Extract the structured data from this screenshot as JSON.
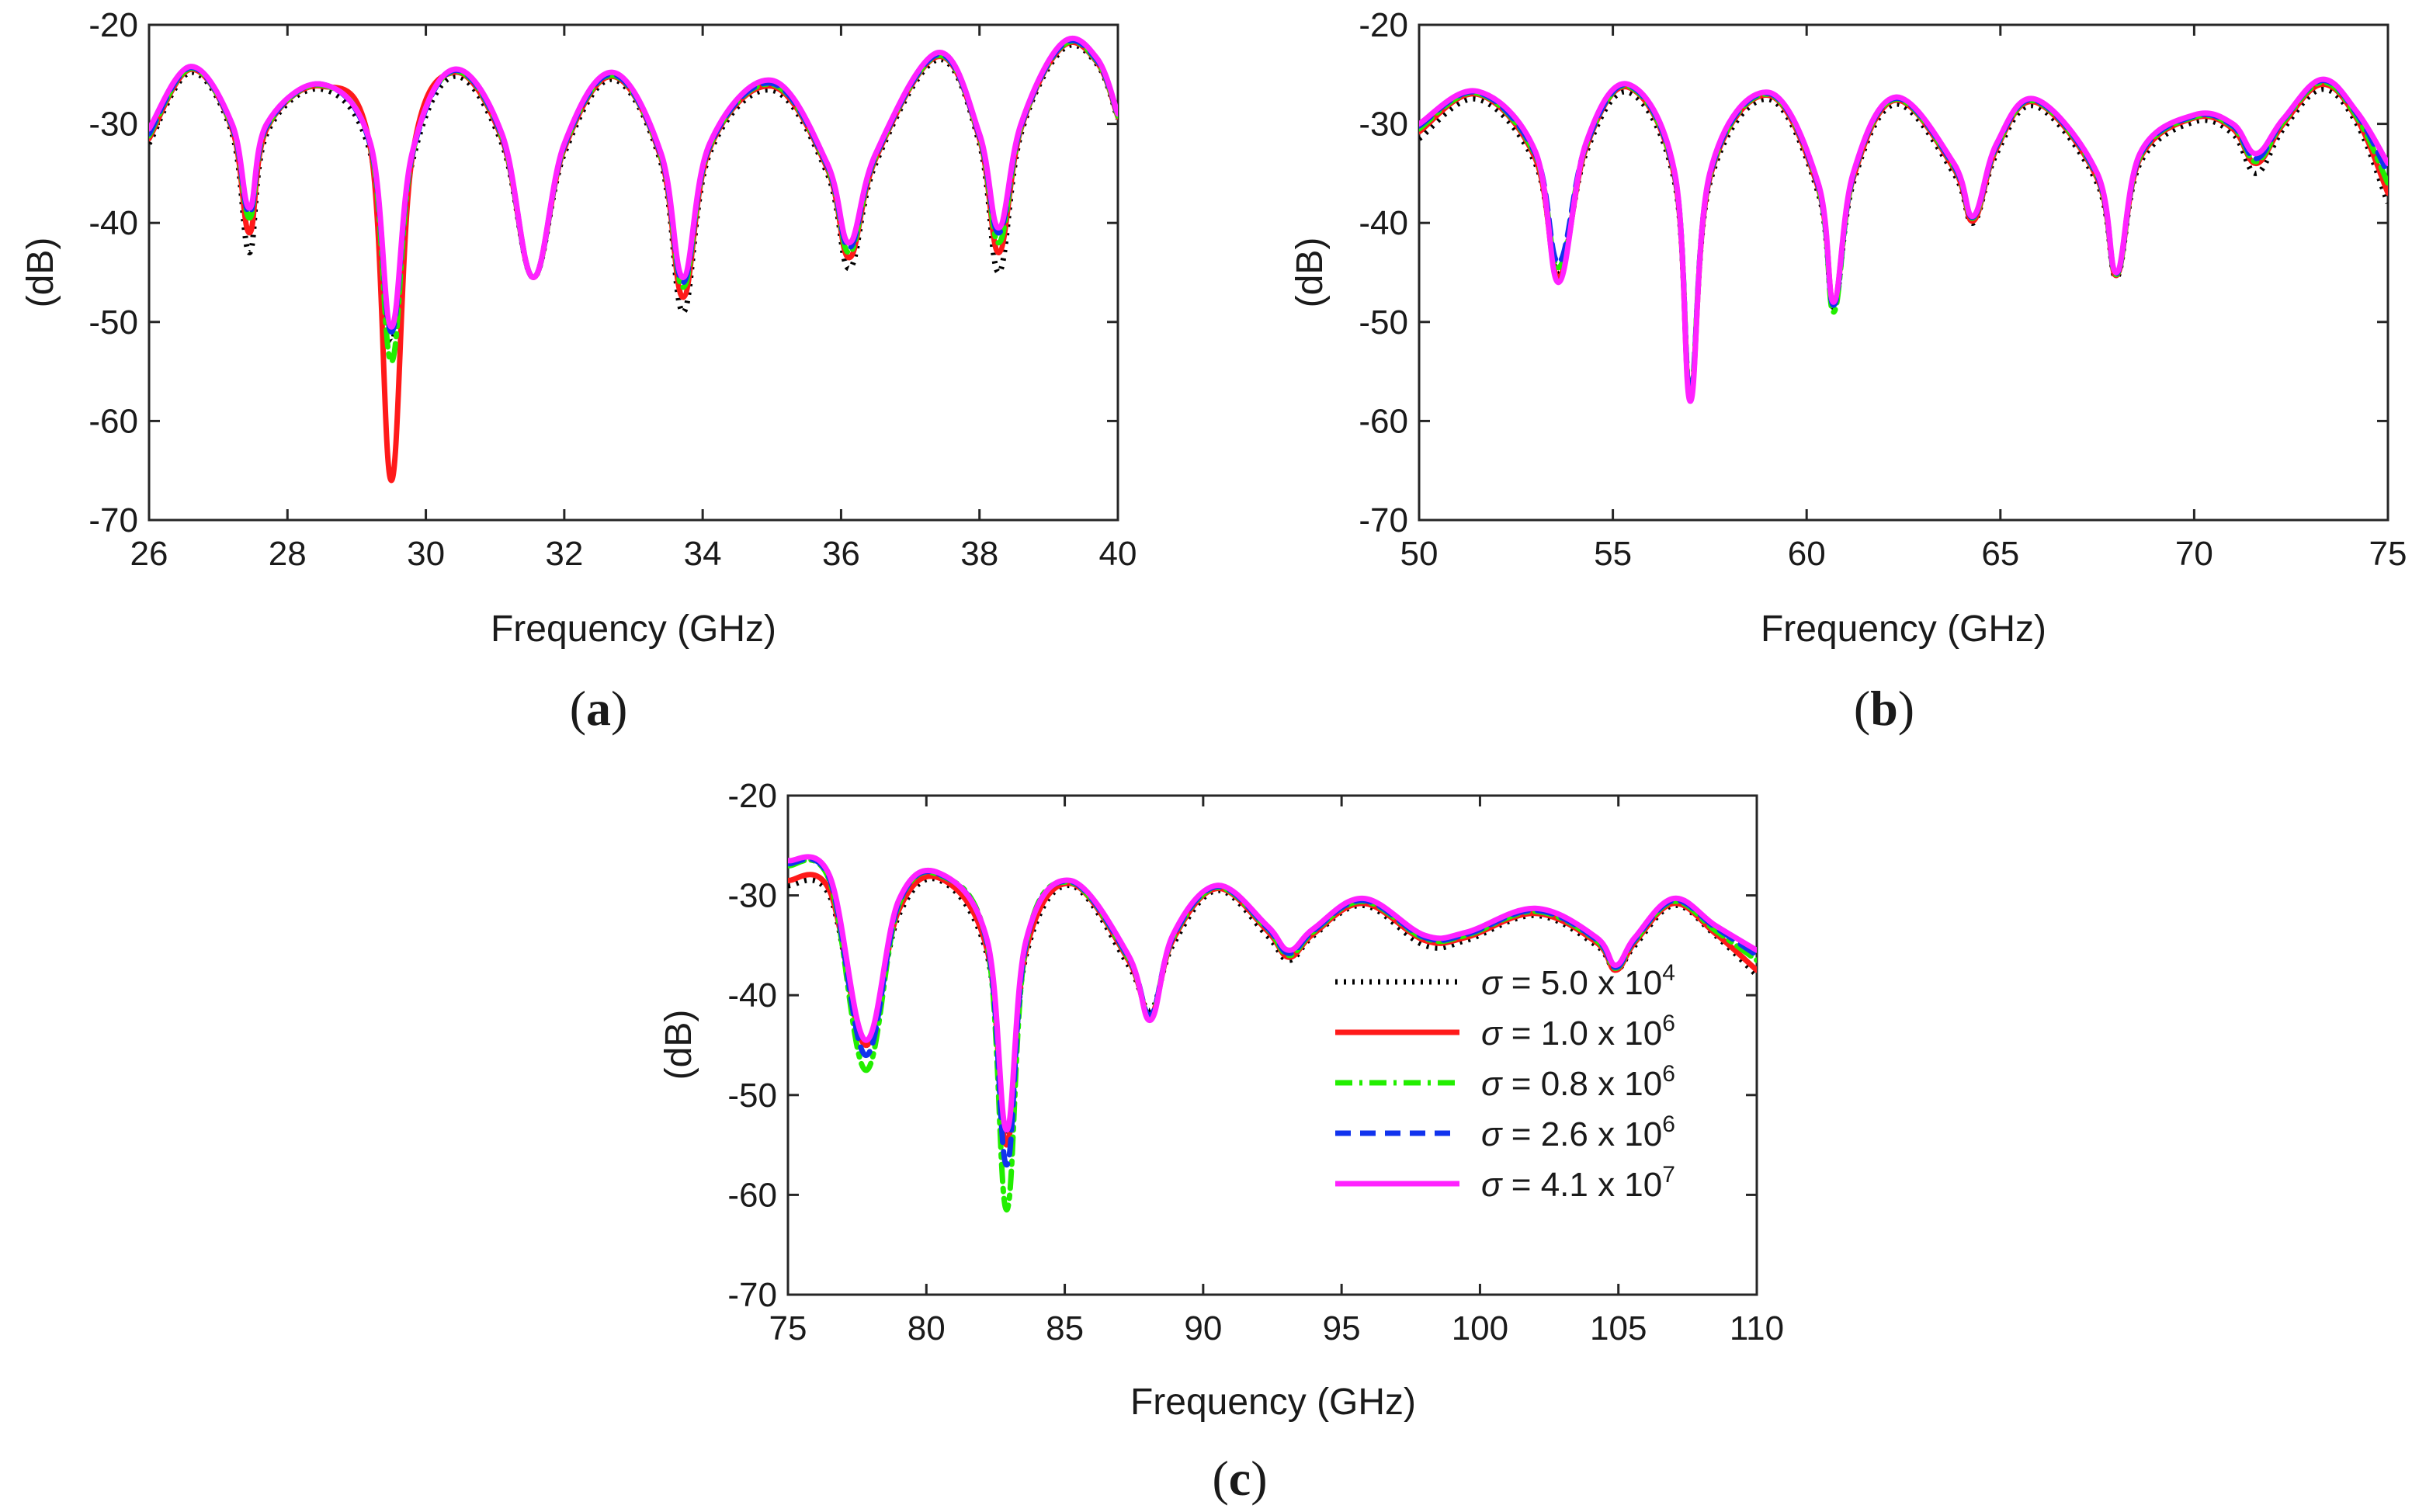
{
  "chart_data": [
    {
      "panel": "a",
      "panel_label": "a",
      "type": "line",
      "xlabel": "Frequency (GHz)",
      "ylabel": "(dB)",
      "xlim": [
        26,
        40
      ],
      "ylim": [
        -70,
        -20
      ],
      "xticks": [
        "26",
        "28",
        "30",
        "32",
        "34",
        "36",
        "38",
        "40"
      ],
      "yticks": [
        "-70",
        "-60",
        "-50",
        "-40",
        "-30",
        "-20"
      ],
      "series": [
        {
          "name": "σ = 5.0 x 10^4",
          "color": "#000000",
          "dash": "dot",
          "x": [
            26,
            26.6,
            27.2,
            27.45,
            27.7,
            28.5,
            29.2,
            29.5,
            29.8,
            30.4,
            31.1,
            31.55,
            32.0,
            32.7,
            33.4,
            33.72,
            34.1,
            35.0,
            35.8,
            36.12,
            36.5,
            37.4,
            38.0,
            38.28,
            38.6,
            39.2,
            39.7,
            40
          ],
          "y": [
            -32,
            -24.8,
            -31,
            -43,
            -31,
            -26.5,
            -33,
            -52,
            -34,
            -25.2,
            -32,
            -45.5,
            -33,
            -25.5,
            -34,
            -49,
            -33,
            -26.6,
            -35,
            -44.6,
            -34,
            -23.5,
            -32,
            -45,
            -31,
            -22.5,
            -24,
            -29.5
          ]
        },
        {
          "name": "σ = 1.0 x 10^6",
          "color": "#ff1a1a",
          "dash": "solid",
          "x": [
            26,
            26.6,
            27.2,
            27.45,
            27.7,
            28.5,
            29.2,
            29.5,
            29.8,
            30.4,
            31.1,
            31.55,
            32.0,
            32.7,
            33.4,
            33.72,
            34.1,
            35.0,
            35.8,
            36.12,
            36.5,
            37.4,
            38.0,
            38.28,
            38.6,
            39.2,
            39.7,
            40
          ],
          "y": [
            -31.5,
            -24.5,
            -30.5,
            -41,
            -30.5,
            -26.2,
            -32.5,
            -66,
            -33.5,
            -24.8,
            -31.5,
            -45.5,
            -32.5,
            -25.2,
            -33.5,
            -47.5,
            -32.5,
            -26.2,
            -34.5,
            -43.5,
            -33.5,
            -23.2,
            -31.5,
            -43,
            -30.5,
            -22.2,
            -23.8,
            -29.3
          ]
        },
        {
          "name": "σ = 0.8 x 10^6",
          "color": "#22ee00",
          "dash": "dashdot",
          "x": [
            26,
            26.6,
            27.2,
            27.45,
            27.7,
            28.5,
            29.2,
            29.5,
            29.8,
            30.4,
            31.1,
            31.55,
            32.0,
            32.7,
            33.4,
            33.72,
            34.1,
            35.0,
            35.8,
            36.12,
            36.5,
            37.4,
            38.0,
            38.28,
            38.6,
            39.2,
            39.7,
            40
          ],
          "y": [
            -31.2,
            -24.4,
            -30.3,
            -39.5,
            -30.3,
            -26.1,
            -32.3,
            -54,
            -33.3,
            -24.7,
            -31.3,
            -45.5,
            -32.3,
            -25.1,
            -33.3,
            -46.5,
            -32.3,
            -26.0,
            -34.3,
            -43,
            -33.3,
            -23.1,
            -31.3,
            -42,
            -30.3,
            -22.1,
            -23.7,
            -29.2
          ]
        },
        {
          "name": "σ = 2.6 x 10^6",
          "color": "#1133ee",
          "dash": "dash",
          "x": [
            26,
            26.6,
            27.2,
            27.45,
            27.7,
            28.5,
            29.2,
            29.5,
            29.8,
            30.4,
            31.1,
            31.55,
            32.0,
            32.7,
            33.4,
            33.72,
            34.1,
            35.0,
            35.8,
            36.12,
            36.5,
            37.4,
            38.0,
            38.28,
            38.6,
            39.2,
            39.7,
            40
          ],
          "y": [
            -31,
            -24.3,
            -30.2,
            -39,
            -30.2,
            -26.0,
            -32.2,
            -51,
            -33.2,
            -24.6,
            -31.2,
            -45.5,
            -32.2,
            -25.0,
            -33.2,
            -46,
            -32.2,
            -25.9,
            -34.2,
            -42.5,
            -33.2,
            -23.0,
            -31.2,
            -41,
            -30.2,
            -22.0,
            -23.6,
            -29.1
          ]
        },
        {
          "name": "σ = 4.1 x 10^7",
          "color": "#ff22ff",
          "dash": "solid",
          "x": [
            26,
            26.6,
            27.2,
            27.45,
            27.7,
            28.5,
            29.2,
            29.5,
            29.8,
            30.4,
            31.1,
            31.55,
            32.0,
            32.7,
            33.4,
            33.72,
            34.1,
            35.0,
            35.8,
            36.12,
            36.5,
            37.4,
            38.0,
            38.28,
            38.6,
            39.2,
            39.7,
            40
          ],
          "y": [
            -30.5,
            -24.2,
            -30,
            -38.5,
            -30,
            -26.0,
            -32,
            -50.5,
            -33,
            -24.5,
            -31,
            -45.5,
            -32,
            -24.8,
            -33,
            -45.5,
            -32,
            -25.6,
            -34,
            -42,
            -33,
            -22.8,
            -31,
            -40.5,
            -30,
            -21.8,
            -23.4,
            -29
          ]
        }
      ]
    },
    {
      "panel": "b",
      "panel_label": "b",
      "type": "line",
      "xlabel": "Frequency (GHz)",
      "ylabel": "(dB)",
      "xlim": [
        50,
        75
      ],
      "ylim": [
        -70,
        -20
      ],
      "xticks": [
        "50",
        "55",
        "60",
        "65",
        "70",
        "75"
      ],
      "yticks": [
        "-70",
        "-60",
        "-50",
        "-40",
        "-30",
        "-20"
      ],
      "series": [
        {
          "name": "σ = 5.0 x 10^4",
          "color": "#000000",
          "dash": "dot",
          "x": [
            50,
            51.5,
            53.0,
            53.6,
            54.3,
            55.4,
            56.6,
            57.0,
            57.5,
            59.0,
            60.3,
            60.7,
            61.2,
            62.3,
            63.8,
            64.3,
            64.9,
            65.9,
            67.5,
            68.0,
            68.6,
            70.0,
            71.0,
            71.6,
            72.3,
            73.3,
            74.2,
            75
          ],
          "y": [
            -31.5,
            -27.5,
            -34,
            -45,
            -33,
            -26.8,
            -36,
            -57,
            -36,
            -27.5,
            -37,
            -48.5,
            -36,
            -28.0,
            -35,
            -40,
            -33,
            -28.2,
            -36,
            -45.5,
            -34,
            -29.8,
            -31,
            -35,
            -30.5,
            -26.5,
            -30,
            -38
          ]
        },
        {
          "name": "σ = 1.0 x 10^6",
          "color": "#ff1a1a",
          "dash": "solid",
          "x": [
            50,
            51.5,
            53.0,
            53.6,
            54.3,
            55.4,
            56.6,
            57.0,
            57.5,
            59.0,
            60.3,
            60.7,
            61.2,
            62.3,
            63.8,
            64.3,
            64.9,
            65.9,
            67.5,
            68.0,
            68.6,
            70.0,
            71.0,
            71.6,
            72.3,
            73.3,
            74.2,
            75
          ],
          "y": [
            -30.8,
            -27.0,
            -33.5,
            -45.5,
            -32.5,
            -26.3,
            -35.5,
            -57.5,
            -35.5,
            -27.1,
            -36.5,
            -48,
            -35.5,
            -27.6,
            -34.5,
            -39.8,
            -32.5,
            -27.8,
            -35.5,
            -45.3,
            -33.5,
            -29.4,
            -30.5,
            -34,
            -30,
            -26,
            -29.5,
            -37
          ]
        },
        {
          "name": "σ = 0.8 x 10^6",
          "color": "#22ee00",
          "dash": "dashdot",
          "x": [
            50,
            51.5,
            53.0,
            53.6,
            54.3,
            55.4,
            56.6,
            57.0,
            57.5,
            59.0,
            60.3,
            60.7,
            61.2,
            62.3,
            63.8,
            64.3,
            64.9,
            65.9,
            67.5,
            68.0,
            68.6,
            70.0,
            71.0,
            71.6,
            72.3,
            73.3,
            74.2,
            75
          ],
          "y": [
            -30.5,
            -26.9,
            -33.2,
            -44.5,
            -32.3,
            -26.2,
            -35.3,
            -57,
            -35.3,
            -27.0,
            -36.3,
            -49,
            -35.3,
            -27.5,
            -34.3,
            -39.5,
            -32.3,
            -27.7,
            -35.3,
            -45.2,
            -33.3,
            -29.3,
            -30.3,
            -33.8,
            -29.8,
            -25.8,
            -29.3,
            -36
          ]
        },
        {
          "name": "σ = 2.6 x 10^6",
          "color": "#1133ee",
          "dash": "dash",
          "x": [
            50,
            51.5,
            53.0,
            53.6,
            54.3,
            55.4,
            56.6,
            57.0,
            57.5,
            59.0,
            60.3,
            60.7,
            61.2,
            62.3,
            63.8,
            64.3,
            64.9,
            65.9,
            67.5,
            68.0,
            68.6,
            70.0,
            71.0,
            71.6,
            72.3,
            73.3,
            74.2,
            75
          ],
          "y": [
            -30.2,
            -26.8,
            -33.0,
            -44.0,
            -32.2,
            -26.1,
            -35.2,
            -57.3,
            -35.2,
            -26.9,
            -36.2,
            -48.3,
            -35.2,
            -27.4,
            -34.2,
            -39.4,
            -32.2,
            -27.6,
            -35.2,
            -45.1,
            -33.2,
            -29.2,
            -30.2,
            -33.5,
            -29.6,
            -25.6,
            -29.0,
            -35
          ]
        },
        {
          "name": "σ = 4.1 x 10^7",
          "color": "#ff22ff",
          "dash": "solid",
          "x": [
            50,
            51.5,
            53.0,
            53.6,
            54.3,
            55.4,
            56.6,
            57.0,
            57.5,
            59.0,
            60.3,
            60.7,
            61.2,
            62.3,
            63.8,
            64.3,
            64.9,
            65.9,
            67.5,
            68.0,
            68.6,
            70.0,
            71.0,
            71.6,
            72.3,
            73.3,
            74.2,
            75
          ],
          "y": [
            -30,
            -26.7,
            -32.8,
            -46,
            -32.0,
            -26.0,
            -35.0,
            -58,
            -35.0,
            -26.8,
            -36.0,
            -48,
            -35.0,
            -27.3,
            -34.0,
            -39.3,
            -32.0,
            -27.5,
            -35.0,
            -45.0,
            -33.0,
            -29.1,
            -30.0,
            -33.0,
            -29.5,
            -25.5,
            -28.8,
            -34
          ]
        }
      ]
    },
    {
      "panel": "c",
      "panel_label": "c",
      "type": "line",
      "xlabel": "Frequency (GHz)",
      "ylabel": "(dB)",
      "xlim": [
        75,
        110
      ],
      "ylim": [
        -70,
        -20
      ],
      "xticks": [
        "75",
        "80",
        "85",
        "90",
        "95",
        "100",
        "105",
        "110"
      ],
      "yticks": [
        "-70",
        "-60",
        "-50",
        "-40",
        "-30",
        "-20"
      ],
      "series": [
        {
          "name": "σ = 5.0 x 10^4",
          "color": "#000000",
          "dash": "dot",
          "x": [
            75,
            76.5,
            77.8,
            79.0,
            80.5,
            82.2,
            82.9,
            83.6,
            85.2,
            87.3,
            88.1,
            88.9,
            90.5,
            92.3,
            93.1,
            94.0,
            95.8,
            98.0,
            99.5,
            102.0,
            104.2,
            104.9,
            105.6,
            107.0,
            108.5,
            110
          ],
          "y": [
            -29,
            -30,
            -45,
            -32,
            -28.5,
            -36,
            -54,
            -36,
            -29,
            -37,
            -41.5,
            -35,
            -29.5,
            -34,
            -36.5,
            -34,
            -31,
            -35,
            -34.5,
            -32,
            -35,
            -37.5,
            -35,
            -31,
            -34,
            -38
          ]
        },
        {
          "name": "σ = 1.0 x 10^6",
          "color": "#ff1a1a",
          "dash": "solid",
          "x": [
            75,
            76.5,
            77.8,
            79.0,
            80.5,
            82.2,
            82.9,
            83.6,
            85.2,
            87.3,
            88.1,
            88.9,
            90.5,
            92.3,
            93.1,
            94.0,
            95.8,
            98.0,
            99.5,
            102.0,
            104.2,
            104.9,
            105.6,
            107.0,
            108.5,
            110
          ],
          "y": [
            -28.5,
            -29.5,
            -45,
            -31.5,
            -28.3,
            -35.5,
            -55,
            -35.5,
            -28.8,
            -36.5,
            -42,
            -34.5,
            -29.3,
            -33.5,
            -36.2,
            -33.8,
            -30.8,
            -34.5,
            -34.2,
            -31.8,
            -34.7,
            -37.5,
            -34.7,
            -30.8,
            -33.8,
            -37.5
          ]
        },
        {
          "name": "σ = 0.8 x 10^6",
          "color": "#22ee00",
          "dash": "dashdot",
          "x": [
            75,
            76.5,
            77.8,
            79.0,
            80.5,
            82.2,
            82.9,
            83.6,
            85.2,
            87.3,
            88.1,
            88.9,
            90.5,
            92.3,
            93.1,
            94.0,
            95.8,
            98.0,
            99.5,
            102.0,
            104.2,
            104.9,
            105.6,
            107.0,
            108.5,
            110
          ],
          "y": [
            -27,
            -28.5,
            -47.5,
            -31,
            -28.0,
            -35,
            -61.5,
            -35,
            -28.7,
            -36.3,
            -42,
            -34.3,
            -29.2,
            -33.3,
            -36,
            -33.6,
            -30.6,
            -34.3,
            -34.0,
            -31.6,
            -34.5,
            -37.3,
            -34.5,
            -30.6,
            -33.5,
            -36.5
          ]
        },
        {
          "name": "σ = 2.6 x 10^6",
          "color": "#1133ee",
          "dash": "dash",
          "x": [
            75,
            76.5,
            77.8,
            79.0,
            80.5,
            82.2,
            82.9,
            83.6,
            85.2,
            87.3,
            88.1,
            88.9,
            90.5,
            92.3,
            93.1,
            94.0,
            95.8,
            98.0,
            99.5,
            102.0,
            104.2,
            104.9,
            105.6,
            107.0,
            108.5,
            110
          ],
          "y": [
            -26.8,
            -28.3,
            -46,
            -30.8,
            -27.9,
            -34.8,
            -57,
            -34.8,
            -28.6,
            -36.2,
            -42,
            -34.2,
            -29.1,
            -33.2,
            -35.8,
            -33.5,
            -30.5,
            -34.2,
            -33.9,
            -31.5,
            -34.4,
            -37.2,
            -34.4,
            -30.5,
            -33.2,
            -36
          ]
        },
        {
          "name": "σ = 4.1 x 10^7",
          "color": "#ff22ff",
          "dash": "solid",
          "x": [
            75,
            76.5,
            77.8,
            79.0,
            80.5,
            82.2,
            82.9,
            83.6,
            85.2,
            87.3,
            88.1,
            88.9,
            90.5,
            92.3,
            93.1,
            94.0,
            95.8,
            98.0,
            99.5,
            102.0,
            104.2,
            104.9,
            105.6,
            107.0,
            108.5,
            110
          ],
          "y": [
            -26.5,
            -28,
            -44.5,
            -30.5,
            -27.8,
            -34.5,
            -53.5,
            -34.5,
            -28.5,
            -36,
            -42.5,
            -34,
            -29.0,
            -33,
            -35.5,
            -33.3,
            -30.3,
            -34,
            -33.7,
            -31.3,
            -34.2,
            -37,
            -34.2,
            -30.3,
            -33,
            -35.5
          ]
        }
      ],
      "legend": {
        "placement": "lower-right",
        "entries": [
          {
            "symbol": "σ",
            "text": "= 5.0 x 10",
            "exp": "4",
            "color": "#000000",
            "dash": "dot"
          },
          {
            "symbol": "σ",
            "text": "= 1.0 x 10",
            "exp": "6",
            "color": "#ff1a1a",
            "dash": "solid"
          },
          {
            "symbol": "σ",
            "text": "= 0.8 x 10",
            "exp": "6",
            "color": "#22ee00",
            "dash": "dashdot"
          },
          {
            "symbol": "σ",
            "text": "= 2.6 x 10",
            "exp": "6",
            "color": "#1133ee",
            "dash": "dash"
          },
          {
            "symbol": "σ",
            "text": "= 4.1 x 10",
            "exp": "7",
            "color": "#ff22ff",
            "dash": "solid"
          }
        ]
      }
    }
  ]
}
